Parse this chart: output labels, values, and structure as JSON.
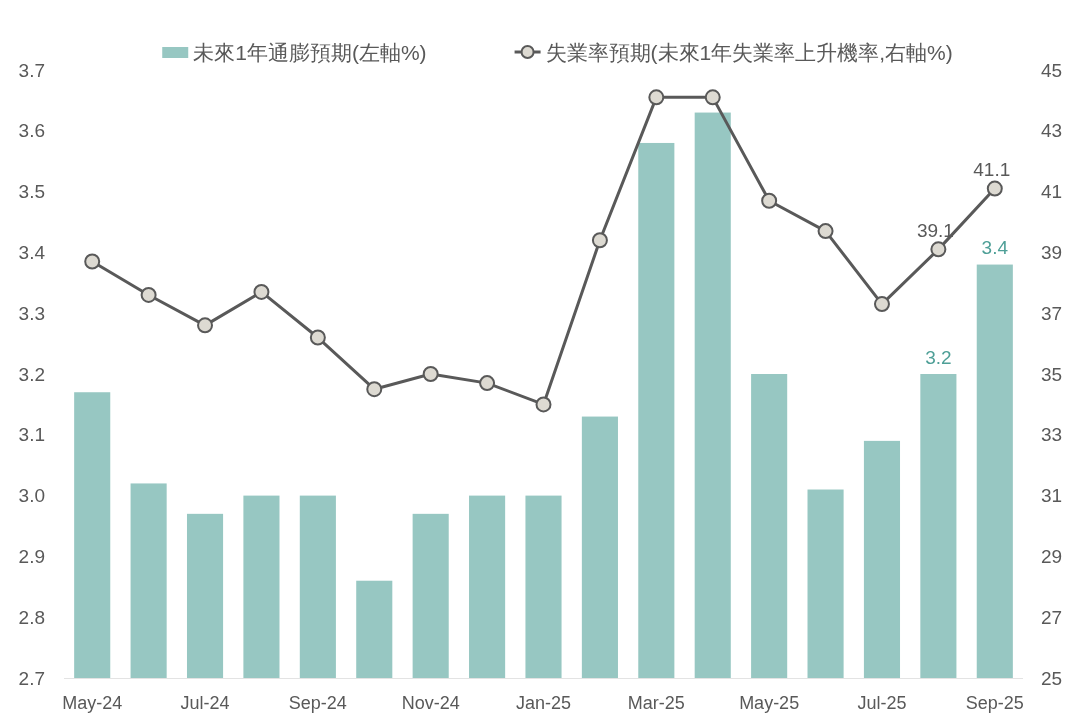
{
  "chart_data": {
    "type": "bar",
    "categories": [
      "May-24",
      null,
      "Jul-24",
      null,
      "Sep-24",
      null,
      "Nov-24",
      null,
      "Jan-25",
      null,
      "Mar-25",
      null,
      "May-25",
      null,
      "Jul-25",
      null,
      "Sep-25"
    ],
    "ylim": [
      2.7,
      3.7
    ],
    "yticks": [
      2.7,
      2.8,
      2.9,
      {
        "value": 3,
        "label": "3.0"
      },
      3.1,
      3.2,
      3.3,
      3.4,
      3.5,
      3.6,
      3.7
    ],
    "y2lim": [
      25,
      45
    ],
    "y2ticks": [
      25,
      27,
      29,
      31,
      33,
      35,
      37,
      39,
      41,
      43,
      45
    ],
    "grid": false,
    "legend": "top",
    "series": [
      {
        "name": "未來1年通膨預期(左軸%)",
        "color": "#97c7c2",
        "values": [
          3.17,
          3.02,
          2.97,
          3.0,
          3.0,
          2.86,
          2.97,
          3.0,
          3.0,
          3.13,
          3.58,
          3.63,
          3.2,
          3.01,
          3.09,
          3.2,
          3.38
        ],
        "value_labels": [
          null,
          null,
          null,
          null,
          null,
          null,
          null,
          null,
          null,
          null,
          null,
          null,
          null,
          null,
          null,
          "3.2",
          "3.4"
        ]
      },
      {
        "name": "失業率預期(未來1年失業率上升機率,右軸%)",
        "type": "line",
        "axis": "y2",
        "color": "#595959",
        "marker": "circle",
        "line_style": "solid",
        "values": [
          38.7,
          37.6,
          36.6,
          37.7,
          36.2,
          34.5,
          35.0,
          34.7,
          34.0,
          39.4,
          44.1,
          44.1,
          40.7,
          39.7,
          37.3,
          39.1,
          41.1
        ],
        "value_labels": [
          null,
          null,
          null,
          null,
          null,
          null,
          null,
          null,
          null,
          null,
          null,
          null,
          null,
          null,
          null,
          "39.1",
          "41.1"
        ]
      }
    ]
  }
}
